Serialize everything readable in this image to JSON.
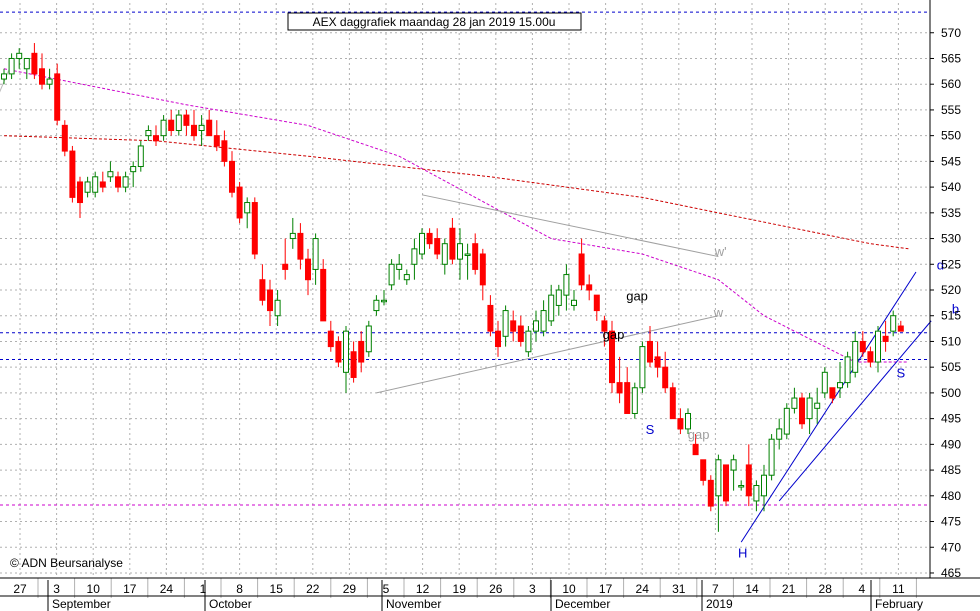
{
  "chart_data": {
    "type": "candlestick",
    "title": "AEX daggrafiek maandag 28 jan 2019 15.00u",
    "copyright": "© ADN Beursanalyse",
    "y_axis": {
      "min": 463,
      "max": 575,
      "position": "right",
      "ticks": [
        465,
        470,
        475,
        480,
        485,
        490,
        495,
        500,
        505,
        510,
        515,
        520,
        525,
        530,
        535,
        540,
        545,
        550,
        555,
        560,
        565,
        570
      ]
    },
    "x_axis": {
      "day_ticks": [
        "27",
        "3",
        "10",
        "17",
        "24",
        "1",
        "8",
        "15",
        "22",
        "29",
        "5",
        "12",
        "19",
        "26",
        "3",
        "10",
        "17",
        "24",
        "31",
        "7",
        "14",
        "21",
        "28",
        "4",
        "11"
      ],
      "months": [
        "September",
        "October",
        "November",
        "December",
        "2019",
        "February"
      ]
    },
    "candles": [
      [
        561,
        563,
        560,
        562
      ],
      [
        562,
        566,
        561,
        565
      ],
      [
        565,
        567,
        563,
        566
      ],
      [
        563,
        565,
        561,
        565
      ],
      [
        566,
        568,
        561,
        562
      ],
      [
        563,
        566,
        559,
        560
      ],
      [
        560,
        563,
        559,
        561
      ],
      [
        562,
        564,
        552,
        553
      ],
      [
        552,
        553,
        546,
        547
      ],
      [
        547,
        548,
        537,
        538
      ],
      [
        541,
        542,
        534,
        537
      ],
      [
        539,
        542,
        538,
        541
      ],
      [
        539,
        543,
        538,
        542
      ],
      [
        541,
        543,
        539,
        540
      ],
      [
        542,
        545,
        541,
        543
      ],
      [
        542,
        543,
        539,
        540
      ],
      [
        540,
        543,
        539,
        542
      ],
      [
        543,
        545,
        540,
        544
      ],
      [
        544,
        549,
        543,
        548
      ],
      [
        550,
        552,
        549,
        551
      ],
      [
        550,
        552,
        548,
        549
      ],
      [
        550,
        554,
        549,
        553
      ],
      [
        553,
        555,
        550,
        551
      ],
      [
        551,
        555,
        550,
        554
      ],
      [
        554,
        555,
        550,
        552
      ],
      [
        552,
        555,
        549,
        550
      ],
      [
        551,
        554,
        548,
        552
      ],
      [
        553,
        555,
        550,
        550
      ],
      [
        550,
        553,
        547,
        548
      ],
      [
        549,
        551,
        544,
        545
      ],
      [
        545,
        547,
        538,
        539
      ],
      [
        540,
        541,
        533,
        534
      ],
      [
        535,
        538,
        532,
        537
      ],
      [
        537,
        538,
        526,
        527
      ],
      [
        522,
        525,
        517,
        518
      ],
      [
        520,
        522,
        513,
        516
      ],
      [
        515,
        520,
        513,
        518
      ],
      [
        525,
        530,
        522,
        524
      ],
      [
        530,
        534,
        528,
        531
      ],
      [
        531,
        533,
        524,
        526
      ],
      [
        526,
        528,
        519,
        522
      ],
      [
        524,
        531,
        521,
        530
      ],
      [
        524,
        526,
        514,
        514
      ],
      [
        512,
        514,
        508,
        509
      ],
      [
        510,
        511,
        505,
        506
      ],
      [
        504,
        513,
        500,
        512
      ],
      [
        508,
        510,
        502,
        503
      ],
      [
        510,
        512,
        504,
        506
      ],
      [
        508,
        514,
        507,
        513
      ],
      [
        516,
        519,
        515,
        518
      ],
      [
        518,
        520,
        517,
        518
      ],
      [
        521,
        526,
        520,
        525
      ],
      [
        524,
        527,
        522,
        525
      ],
      [
        522,
        524,
        521,
        523
      ],
      [
        525,
        530,
        522,
        528
      ],
      [
        527,
        532,
        526,
        531
      ],
      [
        531,
        532,
        528,
        529
      ],
      [
        530,
        532,
        526,
        527
      ],
      [
        525,
        530,
        523,
        529
      ],
      [
        532,
        534,
        525,
        526
      ],
      [
        526,
        532,
        522,
        529
      ],
      [
        527,
        529,
        522,
        527
      ],
      [
        529,
        531,
        523,
        524
      ],
      [
        527,
        528,
        518,
        521
      ],
      [
        517,
        519,
        511,
        512
      ],
      [
        512,
        514,
        507,
        509
      ],
      [
        511,
        517,
        509,
        516
      ],
      [
        514,
        516,
        510,
        512
      ],
      [
        513,
        515,
        509,
        510
      ],
      [
        508,
        513,
        507,
        512
      ],
      [
        512,
        516,
        510,
        514
      ],
      [
        512,
        518,
        511,
        516
      ],
      [
        514,
        521,
        513,
        519
      ],
      [
        517,
        521,
        515,
        520
      ],
      [
        519,
        525,
        516,
        523
      ],
      [
        517,
        520,
        516,
        518
      ],
      [
        527,
        530,
        520,
        521
      ],
      [
        521,
        523,
        518,
        520
      ],
      [
        519,
        519,
        514,
        516
      ],
      [
        514,
        515,
        509,
        512
      ],
      [
        512,
        514,
        500,
        502
      ],
      [
        502,
        507,
        498,
        500
      ],
      [
        502,
        505,
        496,
        496
      ],
      [
        496,
        502,
        495,
        501
      ],
      [
        501,
        510,
        500,
        509
      ],
      [
        510,
        513,
        505,
        506
      ],
      [
        507,
        510,
        503,
        505
      ],
      [
        505,
        508,
        500,
        501
      ],
      [
        501,
        502,
        495,
        495
      ],
      [
        495,
        497,
        492,
        493
      ],
      [
        493,
        497,
        492,
        496
      ],
      [
        490,
        492,
        488,
        488
      ],
      [
        487,
        487,
        482,
        483
      ],
      [
        483,
        484,
        477,
        478
      ],
      [
        480,
        488,
        473,
        487
      ],
      [
        486,
        486,
        478,
        479
      ],
      [
        485,
        488,
        481,
        487
      ],
      [
        482,
        483,
        481,
        482
      ],
      [
        486,
        490,
        478,
        480
      ],
      [
        479,
        483,
        477,
        482
      ],
      [
        480,
        486,
        477,
        484
      ],
      [
        484,
        492,
        483,
        491
      ],
      [
        491,
        495,
        489,
        493
      ],
      [
        492,
        498,
        491,
        497
      ],
      [
        497,
        501,
        496,
        499
      ],
      [
        499,
        500,
        493,
        494
      ],
      [
        495,
        500,
        492,
        499
      ],
      [
        497,
        501,
        494,
        498
      ],
      [
        500,
        505,
        499,
        504
      ],
      [
        501,
        501,
        498,
        499
      ],
      [
        501,
        506,
        499,
        502
      ],
      [
        502,
        508,
        501,
        507
      ],
      [
        504,
        512,
        503,
        510
      ],
      [
        510,
        512,
        507,
        508
      ],
      [
        508,
        509,
        505,
        506
      ],
      [
        506,
        513,
        504,
        512
      ],
      [
        511,
        514,
        508,
        510
      ],
      [
        512,
        516,
        511,
        515
      ],
      [
        513,
        514,
        512,
        512
      ]
    ],
    "moving_averages": [
      {
        "color": "#cc00cc",
        "values": [
          [
            0,
            563
          ],
          [
            24,
            556
          ],
          [
            40,
            552
          ],
          [
            52,
            546
          ],
          [
            62,
            538
          ],
          [
            72,
            530
          ],
          [
            84,
            527
          ],
          [
            94,
            522
          ],
          [
            100,
            515
          ],
          [
            108,
            509
          ],
          [
            112,
            506
          ],
          [
            119,
            506
          ]
        ]
      },
      {
        "color": "#cc0000",
        "values": [
          [
            0,
            550
          ],
          [
            20,
            549
          ],
          [
            40,
            546
          ],
          [
            64,
            542
          ],
          [
            84,
            538
          ],
          [
            104,
            532
          ],
          [
            114,
            529
          ],
          [
            119,
            528
          ]
        ]
      }
    ],
    "horizontal_lines": [
      {
        "value": 574,
        "color": "#0000cc"
      },
      {
        "value": 511.7,
        "color": "#0000cc"
      },
      {
        "value": 506.5,
        "color": "#0000cc"
      },
      {
        "value": 478.2,
        "color": "#cc00cc"
      }
    ],
    "trendlines": [
      {
        "color": "#a0a0a0",
        "points": [
          [
            55,
            538.5
          ],
          [
            94,
            526.5
          ]
        ],
        "label": "w'"
      },
      {
        "color": "#a0a0a0",
        "points": [
          [
            49,
            500
          ],
          [
            94,
            515
          ]
        ],
        "label": "w"
      },
      {
        "color": "#0000cc",
        "points": [
          [
            97,
            471
          ],
          [
            120,
            523.5
          ]
        ],
        "label": "d"
      },
      {
        "color": "#0000cc",
        "points": [
          [
            102,
            479
          ],
          [
            122,
            514
          ]
        ],
        "label": "b"
      },
      {
        "color": "#b8b8b8",
        "points": [
          [
            -1,
            557
          ],
          [
            1,
            564
          ]
        ],
        "label": ""
      }
    ],
    "annotations": [
      {
        "text": "gap",
        "color": "#000000",
        "x": 83.3,
        "value": 518
      },
      {
        "text": "gap",
        "color": "#000000",
        "x": 80.2,
        "value": 510.5
      },
      {
        "text": "gap",
        "color": "#a0a0a0",
        "x": 91.4,
        "value": 491
      },
      {
        "text": "S",
        "color": "#0000cc",
        "x": 85.0,
        "value": 492
      },
      {
        "text": "S",
        "color": "#0000cc",
        "x": 118.0,
        "value": 503
      },
      {
        "text": "H",
        "color": "#0000cc",
        "x": 97.2,
        "value": 468
      },
      {
        "text": "w'",
        "color": "#a0a0a0",
        "x": 94.3,
        "value": 526.6
      },
      {
        "text": "w",
        "color": "#a0a0a0",
        "x": 94.0,
        "value": 514.8
      },
      {
        "text": "d",
        "color": "#0000cc",
        "x": 123.2,
        "value": 524
      },
      {
        "text": "b",
        "color": "#0000cc",
        "x": 125.2,
        "value": 515.4
      }
    ],
    "colors": {
      "up": "#008000",
      "down": "#ff0000",
      "grid": "#b0b0b0",
      "axis": "#000000"
    }
  }
}
